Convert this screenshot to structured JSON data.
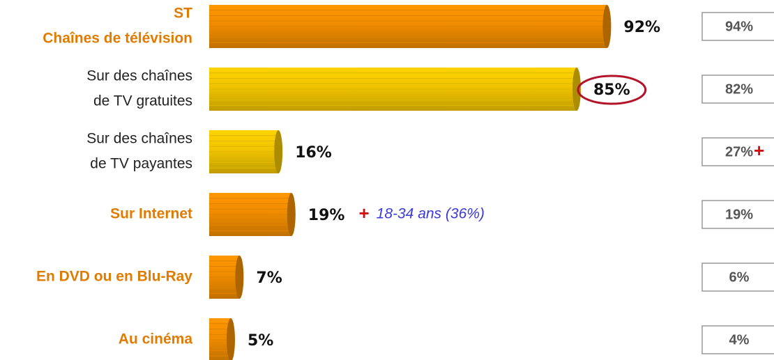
{
  "chart_data": {
    "type": "bar",
    "orientation": "horizontal",
    "categories": [
      [
        "ST",
        "Chaînes de télévision"
      ],
      [
        "Sur  des chaînes",
        "de TV gratuites"
      ],
      [
        "Sur  des chaînes",
        "de TV payantes"
      ],
      [
        "Sur Internet"
      ],
      [
        "En DVD ou en Blu-Ray"
      ],
      [
        "Au cinéma"
      ]
    ],
    "category_colors": [
      "#e07b00",
      "#222222",
      "#222222",
      "#e07b00",
      "#e07b00",
      "#e07b00"
    ],
    "category_bold": [
      true,
      false,
      false,
      true,
      true,
      true
    ],
    "values": [
      92,
      85,
      16,
      19,
      7,
      5
    ],
    "value_labels": [
      "92%",
      "85%",
      "16%",
      "19%",
      "7%",
      "5%"
    ],
    "colors": [
      "#f08c00",
      "#f0c400",
      "#f0c400",
      "#f08c00",
      "#f08c00",
      "#f08c00"
    ],
    "circled": [
      false,
      true,
      false,
      false,
      false,
      false
    ],
    "xlim": [
      0,
      100
    ],
    "notes": [
      null,
      null,
      null,
      {
        "marker": "+",
        "text": "18-34 ans (36%)"
      },
      null,
      null
    ],
    "comparison": {
      "values": [
        94,
        82,
        27,
        19,
        6,
        4
      ],
      "value_labels": [
        "94%",
        "82%",
        "27%",
        "19%",
        "6%",
        "4%"
      ],
      "markers": [
        null,
        null,
        "+",
        null,
        null,
        null
      ]
    }
  }
}
